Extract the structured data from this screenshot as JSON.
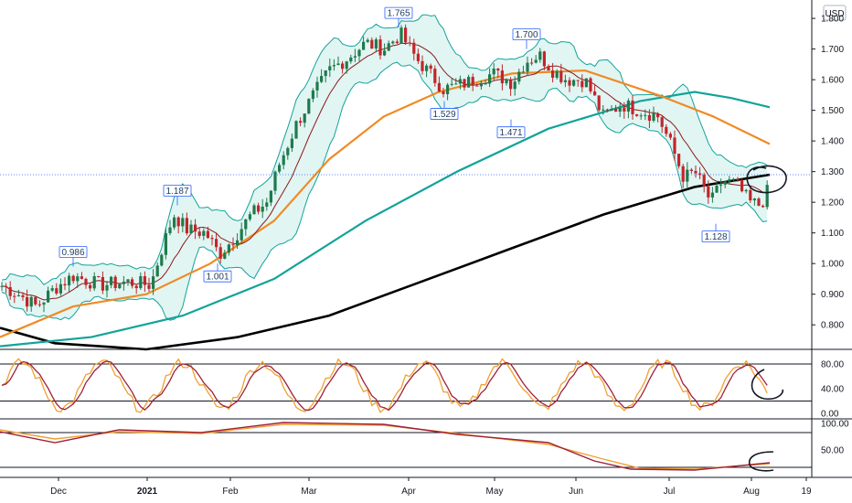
{
  "chart_data": [
    {
      "type": "candlestick",
      "panel": "price",
      "currency": "USD",
      "ylim": [
        0.72,
        1.86
      ],
      "y_ticks": [
        "1.800",
        "1.700",
        "1.600",
        "1.500",
        "1.400",
        "1.300",
        "1.200",
        "1.100",
        "1.000",
        "0.900",
        "0.800"
      ],
      "last_price_level": 1.29,
      "indicators": {
        "ma_fast_color": "#8b1a1a",
        "ma_mid_color": "#f08a24",
        "ma_slow_color": "#12a39a",
        "ma_long_color": "#000000",
        "bands_fill": "#e1f5f3",
        "bands_line": "#12a39a"
      },
      "colors": {
        "up": "#1f7a4d",
        "down": "#c0262a"
      },
      "annotations": [
        {
          "label": "0.986",
          "value": 0.986
        },
        {
          "label": "1.001",
          "value": 1.001
        },
        {
          "label": "1.187",
          "value": 1.187
        },
        {
          "label": "1.765",
          "value": 1.765
        },
        {
          "label": "1.529",
          "value": 1.529
        },
        {
          "label": "1.471",
          "value": 1.471
        },
        {
          "label": "1.700",
          "value": 1.7
        },
        {
          "label": "1.128",
          "value": 1.128
        }
      ]
    },
    {
      "type": "line",
      "panel": "stochastic",
      "ylim": [
        0,
        100
      ],
      "y_ticks": [
        "80.00",
        "40.00",
        "0.00"
      ],
      "reference_levels": [
        80,
        20
      ],
      "colors": {
        "k": "#f0a030",
        "d": "#a0203a"
      }
    },
    {
      "type": "line",
      "panel": "oscillator",
      "ylim": [
        0,
        100
      ],
      "y_ticks": [
        "100.00",
        "50.00"
      ],
      "reference_levels": [
        80,
        20
      ],
      "colors": {
        "a": "#f0a030",
        "b": "#a0203a"
      }
    }
  ],
  "x_axis": {
    "ticks": [
      {
        "label": "Dec",
        "bold": false
      },
      {
        "label": "2021",
        "bold": true
      },
      {
        "label": "Feb",
        "bold": false
      },
      {
        "label": "Mar",
        "bold": false
      },
      {
        "label": "Apr",
        "bold": false
      },
      {
        "label": "May",
        "bold": false
      },
      {
        "label": "Jun",
        "bold": false
      },
      {
        "label": "Jul",
        "bold": false
      },
      {
        "label": "Aug",
        "bold": false
      },
      {
        "label": "19",
        "bold": false
      }
    ]
  }
}
